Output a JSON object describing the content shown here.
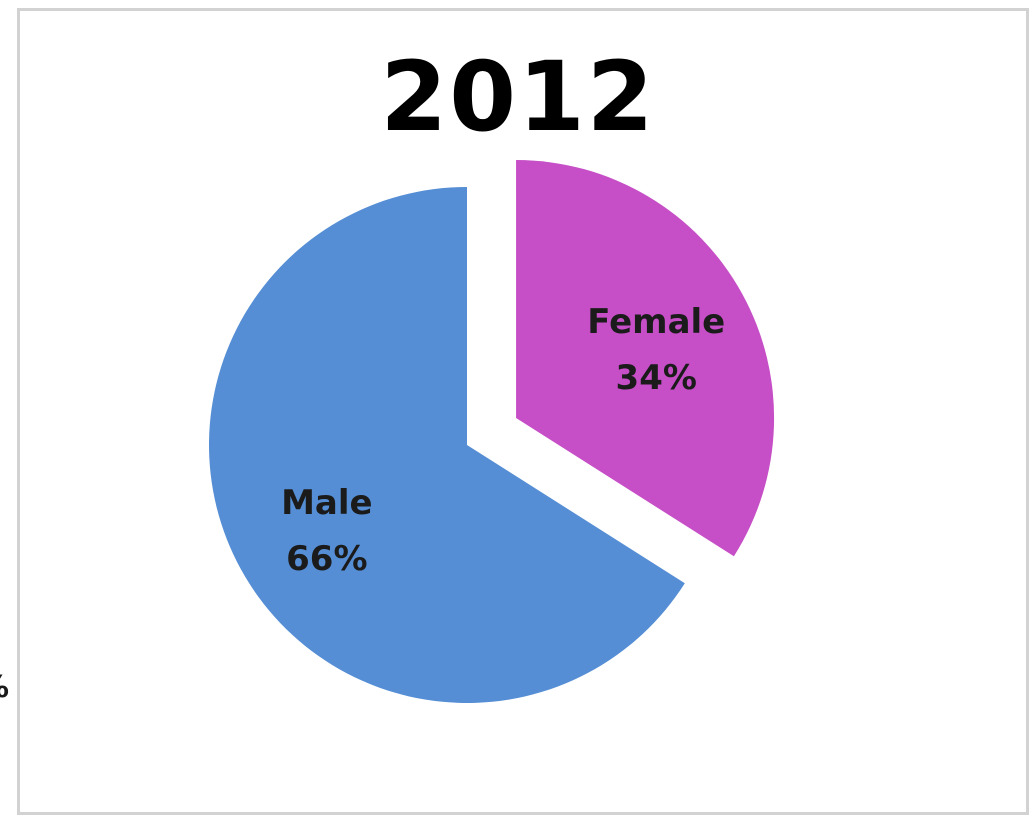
{
  "stray_fragment": "%",
  "chart_data": {
    "type": "pie",
    "title": "2012",
    "slices": [
      {
        "label": "Female",
        "value": 34,
        "value_label": "34%",
        "color": "#c64ec6",
        "exploded": true
      },
      {
        "label": "Male",
        "value": 66,
        "value_label": "66%",
        "color": "#558ed5",
        "exploded": false
      }
    ],
    "legend": "none",
    "start_angle_deg": 0,
    "direction": "clockwise"
  }
}
